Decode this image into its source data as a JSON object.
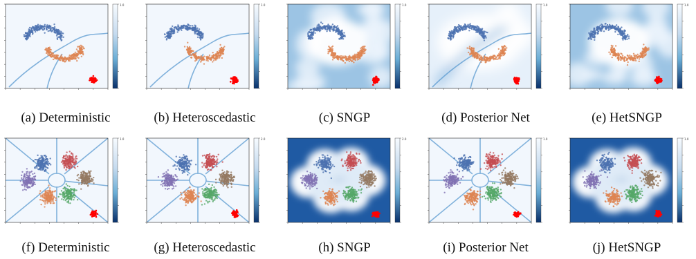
{
  "figure": {
    "rows": [
      {
        "dataset": "two_moons",
        "panels": [
          {
            "caption": "(a) Deterministic",
            "style": "lines",
            "cbar_max": "1.0"
          },
          {
            "caption": "(b) Heteroscedastic",
            "style": "lines",
            "cbar_max": "1.0"
          },
          {
            "caption": "(c) SNGP",
            "style": "cloudy",
            "cbar_max": "1.0"
          },
          {
            "caption": "(d) Posterior Net",
            "style": "smooth",
            "cbar_max": "1.0"
          },
          {
            "caption": "(e) HetSNGP",
            "style": "cloudy",
            "cbar_max": "1.0"
          }
        ]
      },
      {
        "dataset": "five_gaussians",
        "panels": [
          {
            "caption": "(f) Deterministic",
            "style": "lines",
            "cbar_max": "1.0"
          },
          {
            "caption": "(g) Heteroscedastic",
            "style": "lines",
            "cbar_max": "2.0"
          },
          {
            "caption": "(h) SNGP",
            "style": "dark",
            "cbar_max": "2.0"
          },
          {
            "caption": "(i) Posterior Net",
            "style": "lines",
            "cbar_max": "1.0"
          },
          {
            "caption": "(j) HetSNGP",
            "style": "dark",
            "cbar_max": "1.0"
          }
        ]
      }
    ],
    "colors": {
      "blue": "#4c72b0",
      "orange": "#dd8452",
      "green": "#55a868",
      "red": "#c44e52",
      "purple": "#8172b3",
      "brown": "#937860",
      "ood": "#ff0000",
      "background_light": "#f2f7fd",
      "boundary": "#5a9ad0"
    }
  }
}
